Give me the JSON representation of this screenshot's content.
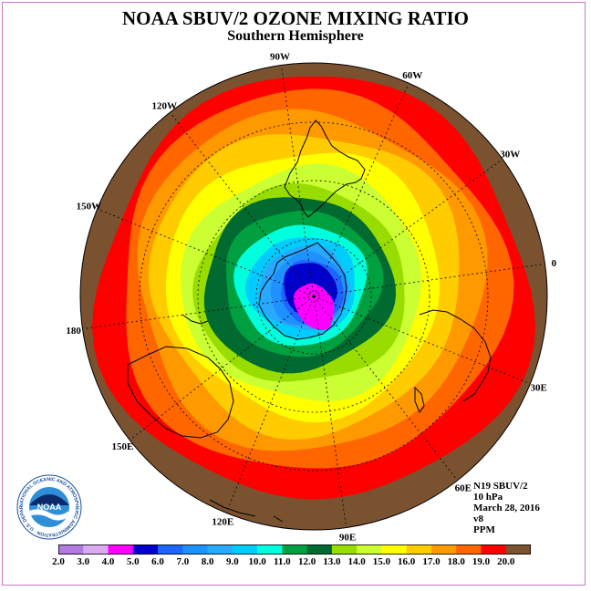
{
  "title": "NOAA SBUV/2 OZONE MIXING RATIO",
  "subtitle": "Southern Hemisphere",
  "info": {
    "line1": "N19 SBUV/2",
    "line2": "10 hPa",
    "line3": "March 28, 2016",
    "line4": "v8",
    "line5": "PPM"
  },
  "longitude_labels": [
    "90W",
    "60W",
    "30W",
    "0",
    "30E",
    "60E",
    "90E",
    "120E",
    "150E",
    "180",
    "150W",
    "120W"
  ],
  "colorbar": {
    "ticks": [
      "2.0",
      "3.0",
      "4.0",
      "5.0",
      "6.0",
      "7.0",
      "8.0",
      "9.0",
      "10.0",
      "11.0",
      "12.0",
      "13.0",
      "14.0",
      "15.0",
      "16.0",
      "17.0",
      "18.0",
      "19.0",
      "20.0"
    ],
    "colors": [
      "#b07ae0",
      "#d9aaf2",
      "#ff00ff",
      "#0000cd",
      "#1e64ff",
      "#1e90ff",
      "#28a8ff",
      "#00ccff",
      "#00ffdd",
      "#00a040",
      "#006a30",
      "#99dd00",
      "#ccff33",
      "#ffff00",
      "#ffcc00",
      "#ff9900",
      "#ff6600",
      "#ff0000",
      "#7a5230"
    ]
  },
  "logo": {
    "text": "NOAA",
    "ring_text": "NATIONAL OCEANIC AND ATMOSPHERIC ADMINISTRATION · U.S. DEPARTMENT OF COMMERCE"
  },
  "contour_levels": [
    19,
    18,
    17,
    16,
    15,
    14,
    13,
    12,
    11,
    10,
    9,
    8,
    7,
    6,
    5,
    4
  ]
}
